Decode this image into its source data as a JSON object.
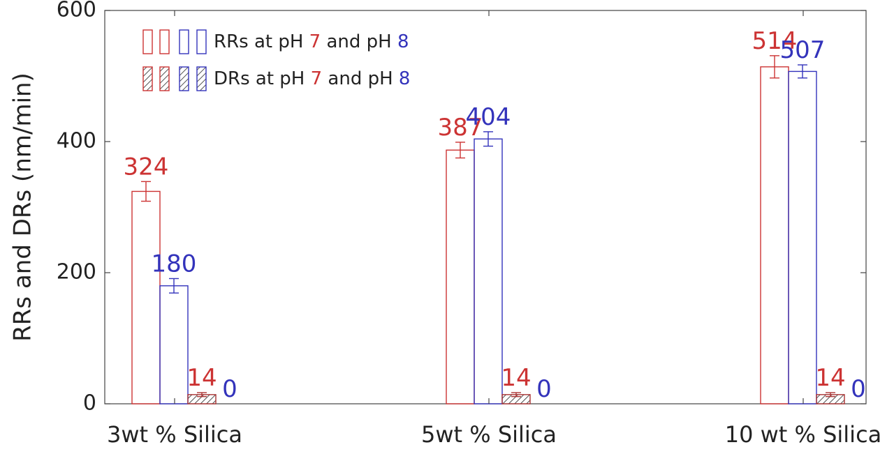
{
  "chart_data": {
    "type": "bar",
    "ylabel": "RRs and DRs (nm/min)",
    "ylim": [
      0,
      600
    ],
    "yticks": [
      0,
      200,
      400,
      600
    ],
    "categories": [
      "3wt % Silica",
      "5wt % Silica",
      "10 wt % Silica"
    ],
    "series": [
      {
        "key": "rr_ph7",
        "values": [
          324,
          387,
          514
        ],
        "errors": [
          15,
          12,
          17
        ],
        "color": "#cc3333",
        "hatch": false,
        "labels": [
          "324",
          "387",
          "514"
        ]
      },
      {
        "key": "rr_ph8",
        "values": [
          180,
          404,
          507
        ],
        "errors": [
          11,
          11,
          10
        ],
        "color": "#3333bb",
        "hatch": false,
        "labels": [
          "180",
          "404",
          "507"
        ]
      },
      {
        "key": "dr_ph7",
        "values": [
          14,
          14,
          14
        ],
        "errors": [
          3,
          3,
          3
        ],
        "color": "#aa3333",
        "hatch": true,
        "labels": [
          "14",
          "14",
          "14"
        ]
      },
      {
        "key": "dr_ph8",
        "values": [
          0,
          0,
          0
        ],
        "errors": [
          0,
          0,
          0
        ],
        "color": "#3333bb",
        "hatch": true,
        "labels": [
          "0",
          "0",
          "0"
        ]
      }
    ],
    "legend": {
      "placement": "top-left",
      "entries": [
        {
          "prefix": "RRs at pH ",
          "v1": "7",
          "mid": " and pH ",
          "v2": "8",
          "hatch": false
        },
        {
          "prefix": "DRs at pH ",
          "v1": "7",
          "mid": " and pH ",
          "v2": "8",
          "hatch": true
        }
      ]
    },
    "colors": {
      "red": "#cc3333",
      "blue": "#3333bb",
      "axis": "#444444"
    },
    "grid": false
  }
}
